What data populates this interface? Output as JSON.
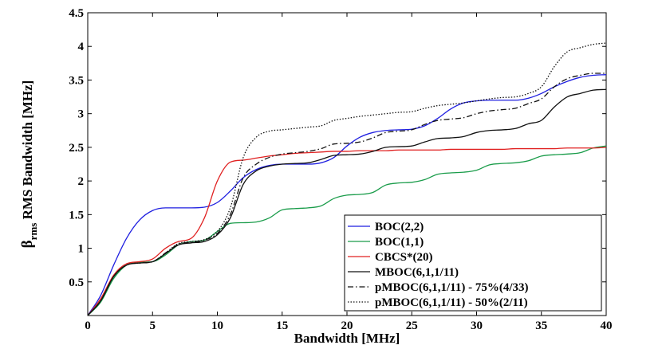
{
  "chart_data": {
    "type": "line",
    "xlabel": "Bandwidth [MHz]",
    "ylabel_main": "β",
    "ylabel_sub": "rms",
    "ylabel_rest": " RMS Bandwidth [MHz]",
    "xlim": [
      0,
      40
    ],
    "ylim": [
      0,
      4.5
    ],
    "xticks": [
      0,
      5,
      10,
      15,
      20,
      25,
      30,
      35,
      40
    ],
    "yticks": [
      0.5,
      1,
      1.5,
      2,
      2.5,
      3,
      3.5,
      4,
      4.5
    ],
    "ytick_labels": [
      "0.5",
      "1",
      "1.5",
      "2",
      "2.5",
      "3",
      "3.5",
      "4",
      "4.5"
    ],
    "grid": false,
    "legend_position": "bottom-right",
    "series": [
      {
        "name": "BOC(2,2)",
        "color": "#1f1fe0",
        "dash": "solid",
        "x": [
          0,
          1,
          2,
          3,
          4,
          5,
          6,
          7,
          8,
          9,
          10,
          11,
          12,
          13,
          14,
          15,
          16,
          17,
          18,
          19,
          20,
          21,
          22,
          23,
          24,
          25,
          26,
          27,
          28,
          29,
          30,
          31,
          32,
          33,
          34,
          35,
          36,
          37,
          38,
          39,
          40
        ],
        "y": [
          0,
          0.3,
          0.75,
          1.15,
          1.42,
          1.56,
          1.6,
          1.6,
          1.6,
          1.61,
          1.68,
          1.85,
          2.05,
          2.17,
          2.23,
          2.25,
          2.25,
          2.25,
          2.27,
          2.35,
          2.52,
          2.65,
          2.72,
          2.75,
          2.76,
          2.77,
          2.82,
          2.93,
          3.07,
          3.16,
          3.19,
          3.2,
          3.2,
          3.2,
          3.23,
          3.3,
          3.4,
          3.48,
          3.54,
          3.57,
          3.58
        ]
      },
      {
        "name": "BOC(1,1)",
        "color": "#1a9c4a",
        "dash": "solid",
        "x": [
          0,
          1,
          2,
          3,
          4,
          5,
          6,
          7,
          8,
          9,
          10,
          11,
          12,
          13,
          14,
          15,
          16,
          17,
          18,
          19,
          20,
          21,
          22,
          23,
          24,
          25,
          26,
          27,
          28,
          29,
          30,
          31,
          32,
          33,
          34,
          35,
          36,
          37,
          38,
          39,
          40
        ],
        "y": [
          0,
          0.2,
          0.55,
          0.75,
          0.79,
          0.8,
          0.9,
          1.05,
          1.1,
          1.12,
          1.25,
          1.37,
          1.38,
          1.39,
          1.45,
          1.57,
          1.59,
          1.6,
          1.63,
          1.74,
          1.79,
          1.8,
          1.83,
          1.94,
          1.97,
          1.98,
          2.02,
          2.1,
          2.12,
          2.13,
          2.16,
          2.24,
          2.26,
          2.27,
          2.3,
          2.37,
          2.39,
          2.4,
          2.42,
          2.49,
          2.52
        ]
      },
      {
        "name": "CBCS*(20)",
        "color": "#e02020",
        "dash": "solid",
        "x": [
          0,
          1,
          2,
          3,
          4,
          5,
          6,
          7,
          8,
          9,
          10,
          11,
          12,
          13,
          14,
          15,
          16,
          17,
          18,
          19,
          20,
          21,
          22,
          23,
          24,
          25,
          26,
          27,
          28,
          29,
          30,
          31,
          32,
          33,
          34,
          35,
          36,
          37,
          38,
          39,
          40
        ],
        "y": [
          0,
          0.25,
          0.6,
          0.77,
          0.8,
          0.84,
          1.0,
          1.1,
          1.15,
          1.45,
          2.0,
          2.28,
          2.31,
          2.34,
          2.37,
          2.39,
          2.41,
          2.42,
          2.43,
          2.44,
          2.44,
          2.45,
          2.45,
          2.45,
          2.46,
          2.46,
          2.46,
          2.46,
          2.47,
          2.47,
          2.47,
          2.47,
          2.47,
          2.48,
          2.48,
          2.48,
          2.48,
          2.49,
          2.49,
          2.49,
          2.5
        ]
      },
      {
        "name": "MBOC(6,1,1/11)",
        "color": "#111111",
        "dash": "solid",
        "x": [
          0,
          1,
          2,
          3,
          4,
          5,
          6,
          7,
          8,
          9,
          10,
          11,
          12,
          13,
          14,
          15,
          16,
          17,
          18,
          19,
          20,
          21,
          22,
          23,
          24,
          25,
          26,
          27,
          28,
          29,
          30,
          31,
          32,
          33,
          34,
          35,
          36,
          37,
          38,
          39,
          40
        ],
        "y": [
          0,
          0.22,
          0.58,
          0.75,
          0.78,
          0.8,
          0.92,
          1.05,
          1.08,
          1.1,
          1.2,
          1.45,
          1.95,
          2.15,
          2.22,
          2.25,
          2.26,
          2.27,
          2.32,
          2.38,
          2.39,
          2.4,
          2.44,
          2.5,
          2.51,
          2.52,
          2.58,
          2.63,
          2.64,
          2.66,
          2.72,
          2.75,
          2.76,
          2.78,
          2.85,
          2.9,
          3.1,
          3.25,
          3.3,
          3.35,
          3.36
        ]
      },
      {
        "name": "pMBOC(6,1,1/11) - 75%(4/33)",
        "color": "#111111",
        "dash": "dashdot",
        "x": [
          0,
          1,
          2,
          3,
          4,
          5,
          6,
          7,
          8,
          9,
          10,
          11,
          12,
          13,
          14,
          15,
          16,
          17,
          18,
          19,
          20,
          21,
          22,
          23,
          24,
          25,
          26,
          27,
          28,
          29,
          30,
          31,
          32,
          33,
          34,
          35,
          36,
          37,
          38,
          39,
          40
        ],
        "y": [
          0,
          0.22,
          0.58,
          0.75,
          0.78,
          0.8,
          0.93,
          1.06,
          1.09,
          1.12,
          1.22,
          1.5,
          2.05,
          2.25,
          2.35,
          2.4,
          2.42,
          2.44,
          2.48,
          2.55,
          2.56,
          2.58,
          2.64,
          2.72,
          2.74,
          2.76,
          2.84,
          2.9,
          2.92,
          2.94,
          3.0,
          3.04,
          3.06,
          3.08,
          3.15,
          3.22,
          3.4,
          3.52,
          3.57,
          3.6,
          3.6
        ]
      },
      {
        "name": "pMBOC(6,1,1/11) - 50%(2/11)",
        "color": "#111111",
        "dash": "dotted",
        "x": [
          0,
          1,
          2,
          3,
          4,
          5,
          6,
          7,
          8,
          9,
          10,
          11,
          12,
          13,
          14,
          15,
          16,
          17,
          18,
          19,
          20,
          21,
          22,
          23,
          24,
          25,
          26,
          27,
          28,
          29,
          30,
          31,
          32,
          33,
          34,
          35,
          36,
          37,
          38,
          39,
          40
        ],
        "y": [
          0,
          0.22,
          0.58,
          0.75,
          0.78,
          0.8,
          0.93,
          1.07,
          1.1,
          1.13,
          1.25,
          1.6,
          2.35,
          2.65,
          2.74,
          2.76,
          2.78,
          2.8,
          2.82,
          2.9,
          2.93,
          2.96,
          2.98,
          3.0,
          3.02,
          3.03,
          3.08,
          3.12,
          3.14,
          3.16,
          3.19,
          3.22,
          3.24,
          3.25,
          3.3,
          3.4,
          3.7,
          3.92,
          3.98,
          4.03,
          4.05
        ]
      }
    ]
  }
}
